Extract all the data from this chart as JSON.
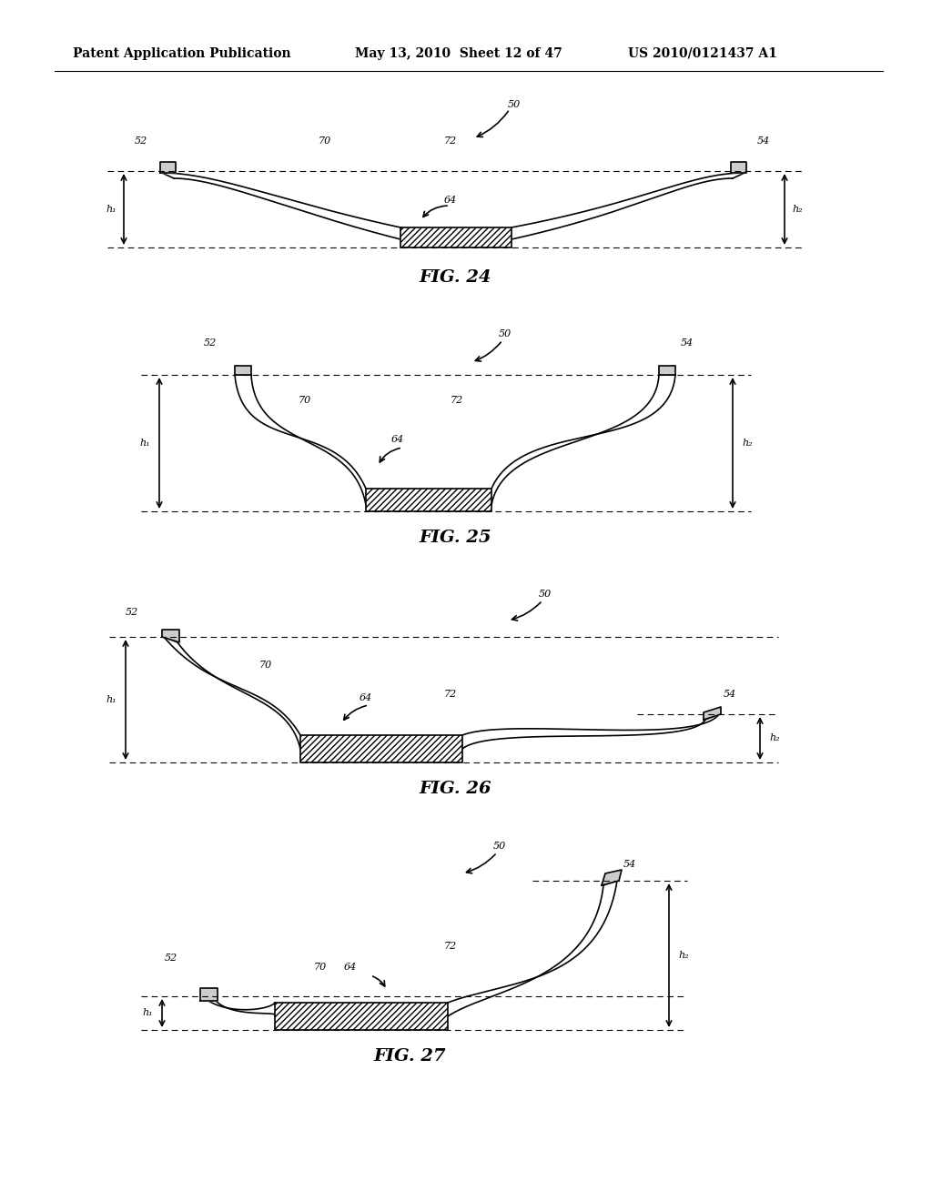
{
  "bg_color": "#ffffff",
  "header_text": "Patent Application Publication",
  "header_date": "May 13, 2010  Sheet 12 of 47",
  "header_patent": "US 2010/0121437 A1",
  "fig24_caption": "FIG. 24",
  "fig25_caption": "FIG. 25",
  "fig26_caption": "FIG. 26",
  "fig27_caption": "FIG. 27",
  "line_color": "#000000",
  "label_fontsize": 8,
  "caption_fontsize": 14,
  "header_fontsize": 10
}
